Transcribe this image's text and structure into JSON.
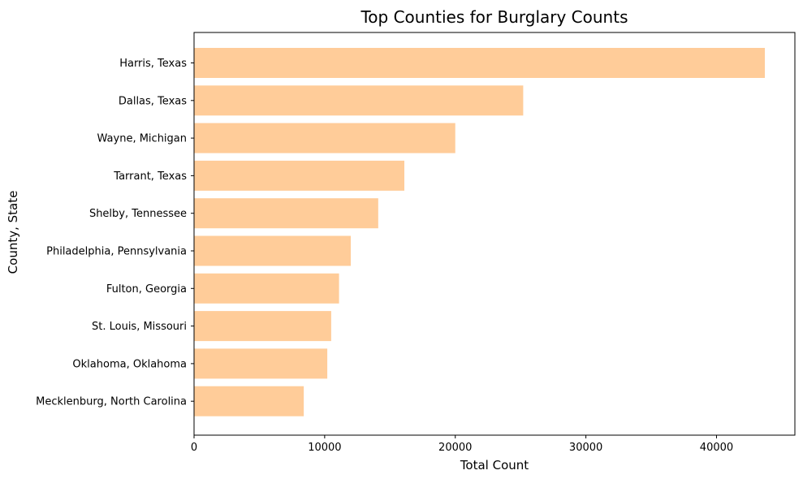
{
  "chart_data": {
    "type": "bar",
    "orientation": "horizontal",
    "title": "Top Counties for Burglary Counts",
    "xlabel": "Total Count",
    "ylabel": "County, State",
    "categories": [
      "Harris, Texas",
      "Dallas, Texas",
      "Wayne, Michigan",
      "Tarrant, Texas",
      "Shelby, Tennessee",
      "Philadelphia, Pennsylvania",
      "Fulton, Georgia",
      "St. Louis, Missouri",
      "Oklahoma, Oklahoma",
      "Mecklenburg, North Carolina"
    ],
    "values": [
      43700,
      25200,
      20000,
      16100,
      14100,
      12000,
      11100,
      10500,
      10200,
      8400
    ],
    "xlim": [
      0,
      46000
    ],
    "xticks": [
      0,
      10000,
      20000,
      30000,
      40000
    ],
    "xtick_labels": [
      "0",
      "10000",
      "20000",
      "30000",
      "40000"
    ],
    "grid": false,
    "bar_color": "#ffcc99"
  }
}
